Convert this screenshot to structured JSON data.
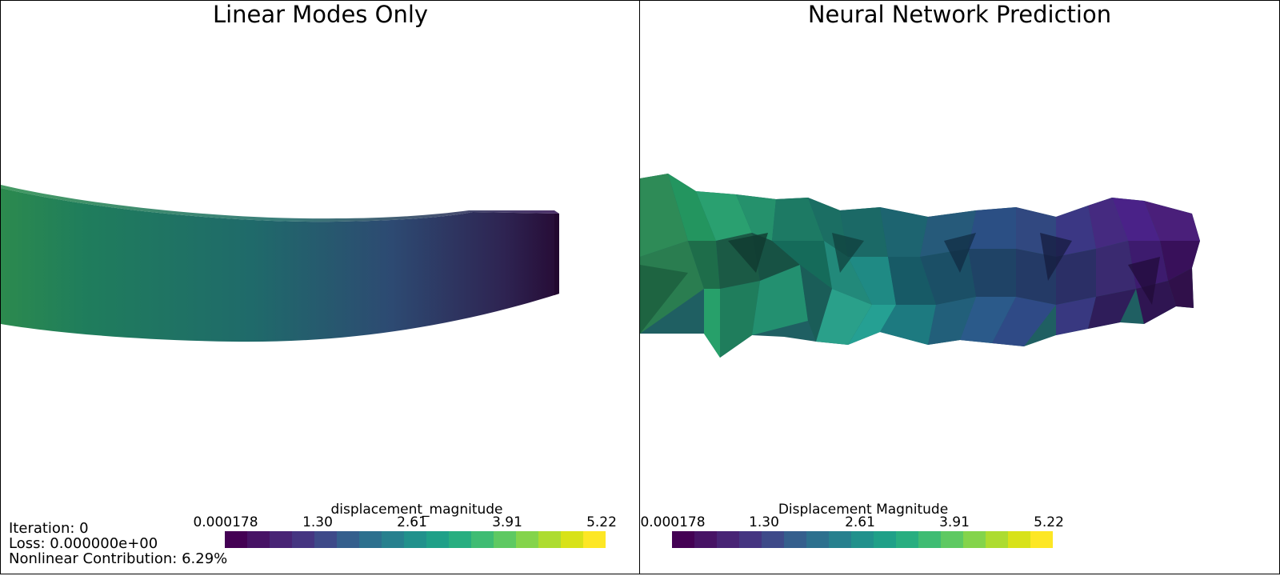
{
  "left_view": {
    "title": "Linear Modes Only",
    "colorbar": {
      "title": "displacement_magnitude",
      "ticks": [
        "0.000178",
        "1.30",
        "2.61",
        "3.91",
        "5.22"
      ]
    },
    "stats": {
      "iteration": "Iteration: 0",
      "loss": "Loss: 0.000000e+00",
      "nonlinear": "Nonlinear Contribution: 6.29%"
    }
  },
  "right_view": {
    "title": "Neural Network Prediction",
    "colorbar": {
      "title": "Displacement Magnitude",
      "ticks": [
        "0.000178",
        "1.30",
        "2.61",
        "3.91",
        "5.22"
      ]
    }
  },
  "colormap": [
    "#440154",
    "#482475",
    "#414487",
    "#355f8d",
    "#2a788e",
    "#21918c",
    "#22a884",
    "#44bf70",
    "#7ad151",
    "#bddf26",
    "#fde725"
  ]
}
